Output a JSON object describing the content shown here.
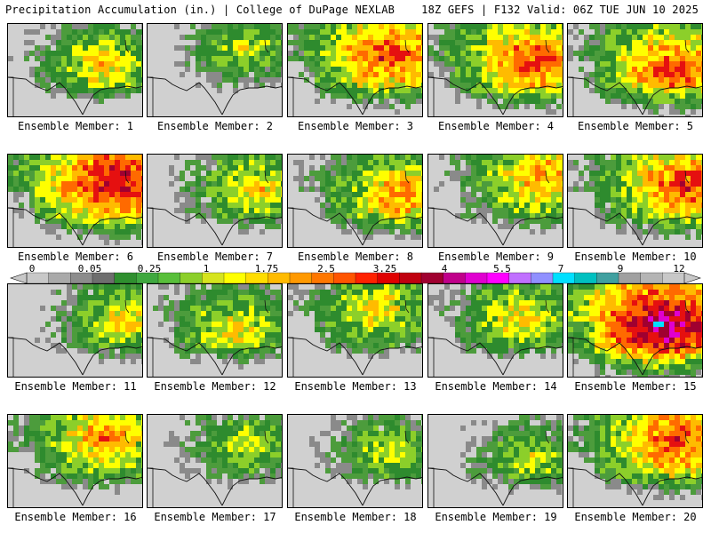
{
  "header": {
    "left": "Precipitation Accumulation (in.) | College of DuPage NEXLAB",
    "right": "18Z GEFS | F132 Valid: 06Z TUE JUN 10 2025"
  },
  "colorbar": {
    "labels": [
      "0",
      "0.05",
      "0.25",
      "1",
      "1.75",
      "2.5",
      "3.25",
      "4",
      "5.5",
      "7",
      "9",
      "12"
    ],
    "colors": [
      "#c8c8c8",
      "#a9a9a9",
      "#8c8c8c",
      "#6e6e6e",
      "#2f8f2f",
      "#3fa83f",
      "#58bf3a",
      "#8ccf2a",
      "#d6e41e",
      "#ffff00",
      "#ffdd00",
      "#ffbb00",
      "#ff9900",
      "#ff7700",
      "#ff5500",
      "#ff2200",
      "#e00000",
      "#c00010",
      "#a00030",
      "#c0008a",
      "#e000d0",
      "#ff00ff",
      "#c070ff",
      "#9090ff",
      "#00e0ff",
      "#00c0c0",
      "#40a0a0",
      "#a0a0a0",
      "#b4b4b4",
      "#c8c8c8"
    ]
  },
  "intensity_colors": [
    "#d0d0d0",
    "#8a8a8a",
    "#4c9c3c",
    "#2e8b2e",
    "#8ccf2a",
    "#ffff00",
    "#ffbb00",
    "#ff6a00",
    "#e51010",
    "#a00030",
    "#e000d0",
    "#00e0ff"
  ],
  "panels": [
    {
      "label": "Ensemble Member: 1",
      "intensity": 6
    },
    {
      "label": "Ensemble Member: 2",
      "intensity": 5
    },
    {
      "label": "Ensemble Member: 3",
      "intensity": 8
    },
    {
      "label": "Ensemble Member: 4",
      "intensity": 8
    },
    {
      "label": "Ensemble Member: 5",
      "intensity": 8
    },
    {
      "label": "Ensemble Member: 6",
      "intensity": 9
    },
    {
      "label": "Ensemble Member: 7",
      "intensity": 6
    },
    {
      "label": "Ensemble Member: 8",
      "intensity": 7
    },
    {
      "label": "Ensemble Member: 9",
      "intensity": 7
    },
    {
      "label": "Ensemble Member: 10",
      "intensity": 8
    },
    {
      "label": "Ensemble Member: 11",
      "intensity": 6
    },
    {
      "label": "Ensemble Member: 12",
      "intensity": 6
    },
    {
      "label": "Ensemble Member: 13",
      "intensity": 6
    },
    {
      "label": "Ensemble Member: 14",
      "intensity": 6
    },
    {
      "label": "Ensemble Member: 15",
      "intensity": 10
    },
    {
      "label": "Ensemble Member: 16",
      "intensity": 7
    },
    {
      "label": "Ensemble Member: 17",
      "intensity": 5
    },
    {
      "label": "Ensemble Member: 18",
      "intensity": 5
    },
    {
      "label": "Ensemble Member: 19",
      "intensity": 5
    },
    {
      "label": "Ensemble Member: 20",
      "intensity": 8
    }
  ]
}
